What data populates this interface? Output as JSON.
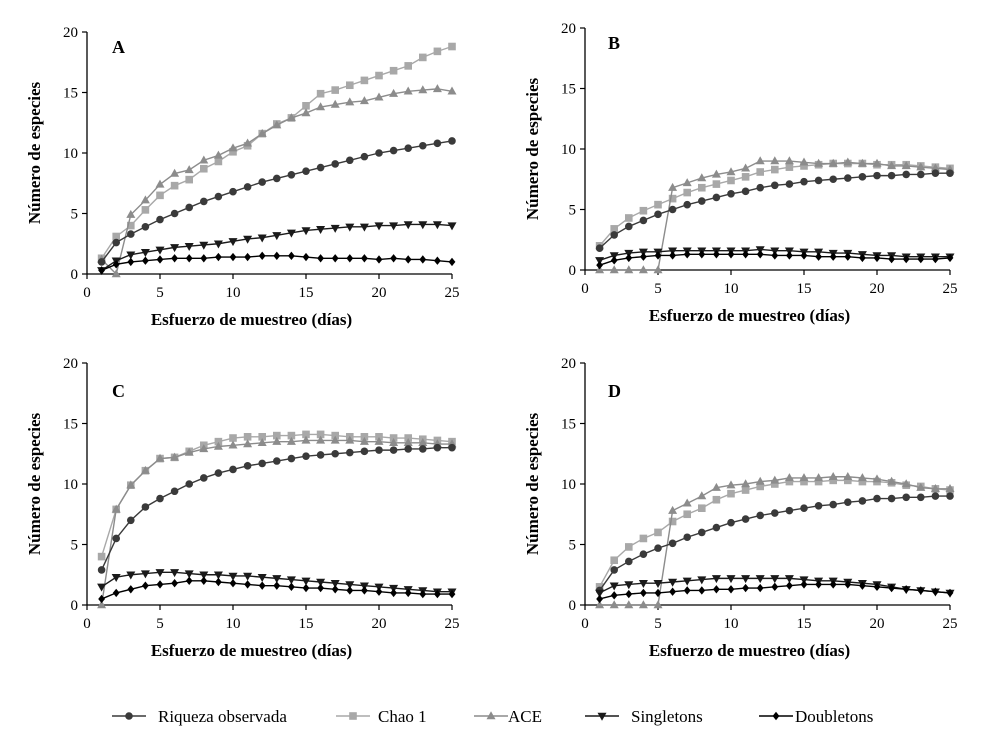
{
  "chart_data": [
    {
      "type": "line",
      "panel_label": "A",
      "xlabel": "Esfuerzo de muestreo (días)",
      "ylabel": "Número de especies",
      "xlim": [
        0,
        25
      ],
      "ylim": [
        0,
        20
      ],
      "xticks": [
        0,
        5,
        10,
        15,
        20,
        25
      ],
      "yticks": [
        0,
        5,
        10,
        15,
        20
      ],
      "x": [
        1,
        2,
        3,
        4,
        5,
        6,
        7,
        8,
        9,
        10,
        11,
        12,
        13,
        14,
        15,
        16,
        17,
        18,
        19,
        20,
        21,
        22,
        23,
        24,
        25
      ],
      "series": [
        {
          "name": "Riqueza observada",
          "values": [
            1.0,
            2.6,
            3.3,
            3.9,
            4.5,
            5.0,
            5.5,
            6.0,
            6.4,
            6.8,
            7.2,
            7.6,
            7.9,
            8.2,
            8.5,
            8.8,
            9.1,
            9.4,
            9.7,
            10.0,
            10.2,
            10.4,
            10.6,
            10.8,
            11.0
          ]
        },
        {
          "name": "Chao 1",
          "values": [
            1.3,
            3.1,
            4.0,
            5.3,
            6.5,
            7.3,
            7.8,
            8.7,
            9.3,
            10.1,
            10.6,
            11.6,
            12.4,
            12.9,
            13.9,
            14.9,
            15.2,
            15.6,
            16.0,
            16.4,
            16.8,
            17.2,
            17.9,
            18.4,
            18.8
          ]
        },
        {
          "name": "ACE",
          "values": [
            1.2,
            0.0,
            4.9,
            6.1,
            7.4,
            8.3,
            8.6,
            9.4,
            9.8,
            10.4,
            10.8,
            11.6,
            12.3,
            12.9,
            13.3,
            13.8,
            14.0,
            14.2,
            14.3,
            14.6,
            14.9,
            15.1,
            15.2,
            15.3,
            15.1
          ]
        },
        {
          "name": "Singletons",
          "values": [
            0.3,
            1.1,
            1.6,
            1.8,
            2.0,
            2.2,
            2.3,
            2.4,
            2.5,
            2.7,
            2.9,
            3.0,
            3.2,
            3.4,
            3.6,
            3.7,
            3.8,
            3.9,
            3.9,
            4.0,
            4.0,
            4.1,
            4.1,
            4.1,
            4.0
          ]
        },
        {
          "name": "Doubletons",
          "values": [
            0.3,
            0.8,
            1.0,
            1.1,
            1.2,
            1.3,
            1.3,
            1.3,
            1.4,
            1.4,
            1.4,
            1.5,
            1.5,
            1.5,
            1.4,
            1.3,
            1.3,
            1.3,
            1.3,
            1.2,
            1.3,
            1.2,
            1.2,
            1.1,
            1.0
          ]
        }
      ]
    },
    {
      "type": "line",
      "panel_label": "B",
      "xlabel": "Esfuerzo de muestreo (días)",
      "ylabel": "Número de especies",
      "xlim": [
        0,
        25
      ],
      "ylim": [
        0,
        20
      ],
      "xticks": [
        0,
        5,
        10,
        15,
        20,
        25
      ],
      "yticks": [
        0,
        5,
        10,
        15,
        20
      ],
      "x": [
        1,
        2,
        3,
        4,
        5,
        6,
        7,
        8,
        9,
        10,
        11,
        12,
        13,
        14,
        15,
        16,
        17,
        18,
        19,
        20,
        21,
        22,
        23,
        24,
        25
      ],
      "series": [
        {
          "name": "Riqueza observada",
          "values": [
            1.8,
            2.9,
            3.6,
            4.1,
            4.6,
            5.0,
            5.4,
            5.7,
            6.0,
            6.3,
            6.5,
            6.8,
            7.0,
            7.1,
            7.3,
            7.4,
            7.5,
            7.6,
            7.7,
            7.8,
            7.8,
            7.9,
            7.9,
            8.0,
            8.0
          ]
        },
        {
          "name": "Chao 1",
          "values": [
            2.0,
            3.4,
            4.3,
            4.9,
            5.4,
            5.9,
            6.4,
            6.8,
            7.1,
            7.4,
            7.7,
            8.1,
            8.3,
            8.5,
            8.6,
            8.7,
            8.8,
            8.8,
            8.8,
            8.7,
            8.7,
            8.7,
            8.6,
            8.5,
            8.4
          ]
        },
        {
          "name": "ACE",
          "values": [
            0.0,
            0.0,
            0.0,
            0.0,
            0.0,
            6.8,
            7.2,
            7.6,
            7.9,
            8.1,
            8.4,
            9.0,
            9.0,
            9.0,
            8.9,
            8.8,
            8.8,
            8.9,
            8.8,
            8.8,
            8.6,
            8.6,
            8.5,
            8.4,
            8.3
          ]
        },
        {
          "name": "Singletons",
          "values": [
            0.8,
            1.2,
            1.4,
            1.5,
            1.5,
            1.6,
            1.6,
            1.6,
            1.6,
            1.6,
            1.6,
            1.7,
            1.6,
            1.6,
            1.5,
            1.5,
            1.4,
            1.4,
            1.3,
            1.2,
            1.2,
            1.1,
            1.1,
            1.1,
            1.1
          ]
        },
        {
          "name": "Doubletons",
          "values": [
            0.4,
            0.8,
            1.0,
            1.1,
            1.2,
            1.2,
            1.3,
            1.3,
            1.3,
            1.3,
            1.3,
            1.3,
            1.2,
            1.2,
            1.2,
            1.1,
            1.1,
            1.1,
            1.0,
            1.0,
            0.9,
            0.9,
            0.9,
            0.9,
            1.0
          ]
        }
      ]
    },
    {
      "type": "line",
      "panel_label": "C",
      "xlabel": "Esfuerzo de muestreo (días)",
      "ylabel": "Número de especies",
      "xlim": [
        0,
        25
      ],
      "ylim": [
        0,
        20
      ],
      "xticks": [
        0,
        5,
        10,
        15,
        20,
        25
      ],
      "yticks": [
        0,
        5,
        10,
        15,
        20
      ],
      "x": [
        1,
        2,
        3,
        4,
        5,
        6,
        7,
        8,
        9,
        10,
        11,
        12,
        13,
        14,
        15,
        16,
        17,
        18,
        19,
        20,
        21,
        22,
        23,
        24,
        25
      ],
      "series": [
        {
          "name": "Riqueza observada",
          "values": [
            2.9,
            5.5,
            7.0,
            8.1,
            8.8,
            9.4,
            10.0,
            10.5,
            10.9,
            11.2,
            11.5,
            11.7,
            11.9,
            12.1,
            12.3,
            12.4,
            12.5,
            12.6,
            12.7,
            12.8,
            12.8,
            12.9,
            12.9,
            13.0,
            13.0
          ]
        },
        {
          "name": "Chao 1",
          "values": [
            4.0,
            7.9,
            9.9,
            11.1,
            12.1,
            12.2,
            12.7,
            13.2,
            13.5,
            13.8,
            13.9,
            13.9,
            14.0,
            14.0,
            14.1,
            14.1,
            14.0,
            13.9,
            13.9,
            13.9,
            13.8,
            13.8,
            13.7,
            13.6,
            13.5
          ]
        },
        {
          "name": "ACE",
          "values": [
            0.0,
            7.9,
            9.9,
            11.1,
            12.1,
            12.2,
            12.6,
            12.9,
            13.1,
            13.2,
            13.3,
            13.4,
            13.5,
            13.5,
            13.6,
            13.6,
            13.6,
            13.6,
            13.5,
            13.5,
            13.4,
            13.4,
            13.4,
            13.3,
            13.3
          ]
        },
        {
          "name": "Singletons",
          "values": [
            1.5,
            2.3,
            2.5,
            2.6,
            2.7,
            2.7,
            2.6,
            2.5,
            2.5,
            2.4,
            2.4,
            2.3,
            2.2,
            2.1,
            2.0,
            1.9,
            1.8,
            1.7,
            1.6,
            1.5,
            1.4,
            1.3,
            1.2,
            1.1,
            1.1
          ]
        },
        {
          "name": "Doubletons",
          "values": [
            0.5,
            1.0,
            1.3,
            1.6,
            1.7,
            1.8,
            2.0,
            2.0,
            1.9,
            1.8,
            1.7,
            1.6,
            1.6,
            1.5,
            1.4,
            1.4,
            1.3,
            1.2,
            1.2,
            1.1,
            1.0,
            1.0,
            0.9,
            0.9,
            0.9
          ]
        }
      ]
    },
    {
      "type": "line",
      "panel_label": "D",
      "xlabel": "Esfuerzo de muestreo (días)",
      "ylabel": "Número de especies",
      "xlim": [
        0,
        25
      ],
      "ylim": [
        0,
        20
      ],
      "xticks": [
        0,
        5,
        10,
        15,
        20,
        25
      ],
      "yticks": [
        0,
        5,
        10,
        15,
        20
      ],
      "x": [
        1,
        2,
        3,
        4,
        5,
        6,
        7,
        8,
        9,
        10,
        11,
        12,
        13,
        14,
        15,
        16,
        17,
        18,
        19,
        20,
        21,
        22,
        23,
        24,
        25
      ],
      "series": [
        {
          "name": "Riqueza observada",
          "values": [
            1.2,
            2.9,
            3.6,
            4.2,
            4.7,
            5.1,
            5.6,
            6.0,
            6.4,
            6.8,
            7.1,
            7.4,
            7.6,
            7.8,
            8.0,
            8.2,
            8.3,
            8.5,
            8.6,
            8.8,
            8.8,
            8.9,
            8.9,
            9.0,
            9.0
          ]
        },
        {
          "name": "Chao 1",
          "values": [
            1.5,
            3.7,
            4.8,
            5.5,
            6.0,
            6.9,
            7.5,
            8.0,
            8.7,
            9.2,
            9.5,
            9.8,
            10.0,
            10.2,
            10.2,
            10.2,
            10.3,
            10.3,
            10.2,
            10.2,
            10.1,
            9.9,
            9.8,
            9.6,
            9.5
          ]
        },
        {
          "name": "ACE",
          "values": [
            0.0,
            0.0,
            0.0,
            0.0,
            0.0,
            7.8,
            8.4,
            9.0,
            9.7,
            9.9,
            10.0,
            10.2,
            10.3,
            10.5,
            10.5,
            10.5,
            10.6,
            10.6,
            10.5,
            10.4,
            10.2,
            10.0,
            9.7,
            9.6,
            9.6
          ]
        },
        {
          "name": "Singletons",
          "values": [
            1.0,
            1.6,
            1.7,
            1.8,
            1.8,
            1.9,
            2.0,
            2.1,
            2.2,
            2.2,
            2.2,
            2.2,
            2.2,
            2.2,
            2.1,
            2.0,
            2.0,
            1.9,
            1.8,
            1.7,
            1.5,
            1.3,
            1.2,
            1.1,
            1.0
          ]
        },
        {
          "name": "Doubletons",
          "values": [
            0.5,
            0.8,
            0.9,
            1.0,
            1.0,
            1.1,
            1.2,
            1.2,
            1.3,
            1.3,
            1.4,
            1.4,
            1.5,
            1.6,
            1.7,
            1.7,
            1.7,
            1.7,
            1.6,
            1.5,
            1.4,
            1.3,
            1.2,
            1.1,
            1.0
          ]
        }
      ]
    }
  ],
  "legend": {
    "items": [
      "Riqueza observada",
      "Chao 1",
      "ACE",
      "Singletons",
      "Doubletons"
    ],
    "position": "bottom"
  },
  "colors": {
    "Riqueza observada": "#3a3a3a",
    "Chao 1": "#a8a8a8",
    "ACE": "#8c8c8c",
    "Singletons": "#1a1a1a",
    "Doubletons": "#000000",
    "axis": "#000000"
  }
}
